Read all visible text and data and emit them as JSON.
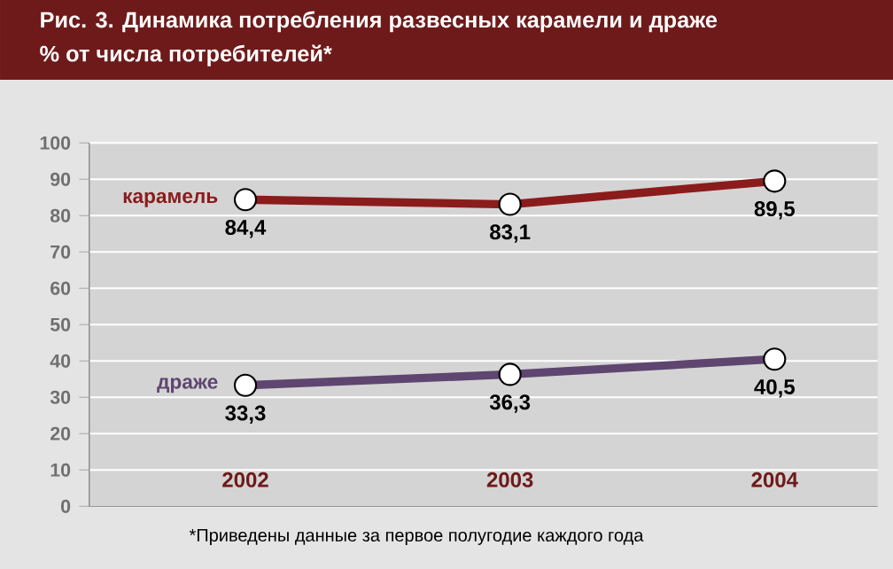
{
  "chart_data": {
    "type": "line",
    "title": "Рис. 3. Динамика потребления развесных карамели и драже",
    "subtitle": "% от числа потребителей*",
    "categories": [
      "2002",
      "2003",
      "2004"
    ],
    "series": [
      {
        "name": "карамель",
        "color": "#8b1c1c",
        "values": [
          84.4,
          83.1,
          89.5
        ],
        "value_labels": [
          "84,4",
          "83,1",
          "89,5"
        ]
      },
      {
        "name": "драже",
        "color": "#5e4670",
        "values": [
          33.3,
          36.3,
          40.5
        ],
        "value_labels": [
          "33,3",
          "36,3",
          "40,5"
        ]
      }
    ],
    "ylim": [
      0,
      100
    ],
    "yticks": [
      0,
      10,
      20,
      30,
      40,
      50,
      60,
      70,
      80,
      90,
      100
    ],
    "grid": "y",
    "marker": "circle",
    "line_style": "solid",
    "annotations": [
      "*Приведены данные за первое полугодие каждого года"
    ]
  }
}
